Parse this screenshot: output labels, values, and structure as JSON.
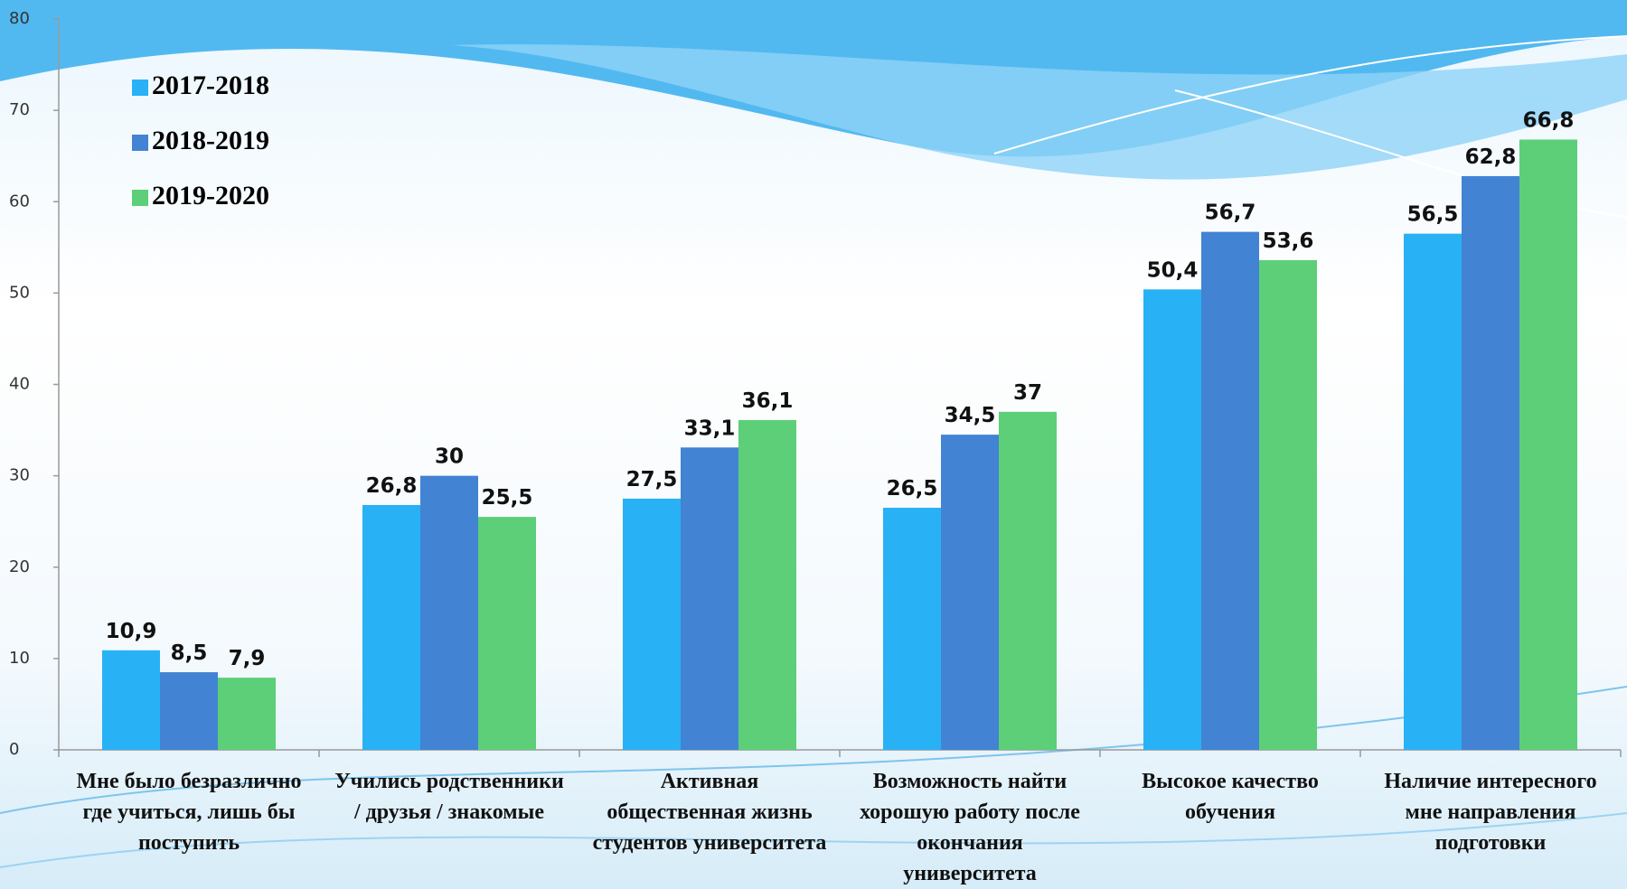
{
  "chart_data": {
    "type": "bar",
    "categories": [
      "Мне было безразлично где учиться, лишь бы поступить",
      "Учились родственники / друзья / знакомые",
      "Активная общественная жизнь студентов университета",
      "Возможность найти хорошую работу после окончания университета",
      "Высокое качество обучения",
      "Наличие интересного мне направления подготовки"
    ],
    "series": [
      {
        "name": "2017-2018",
        "color": "#29b1f5",
        "values": [
          10.9,
          26.8,
          27.5,
          26.5,
          50.4,
          56.5
        ],
        "value_labels": [
          "10,9",
          "26,8",
          "27,5",
          "26,5",
          "50,4",
          "56,5"
        ]
      },
      {
        "name": "2018-2019",
        "color": "#4283d3",
        "values": [
          8.5,
          30,
          33.1,
          34.5,
          56.7,
          62.8
        ],
        "value_labels": [
          "8,5",
          "30",
          "33,1",
          "34,5",
          "56,7",
          "62,8"
        ]
      },
      {
        "name": "2019-2020",
        "color": "#5ccf78",
        "values": [
          7.9,
          25.5,
          36.1,
          37,
          53.6,
          66.8
        ],
        "value_labels": [
          "7,9",
          "25,5",
          "36,1",
          "37",
          "53,6",
          "66,8"
        ]
      }
    ],
    "ylim": [
      0,
      80
    ],
    "yticks": [
      0,
      10,
      20,
      30,
      40,
      50,
      60,
      70,
      80
    ],
    "legend": "top-left"
  }
}
